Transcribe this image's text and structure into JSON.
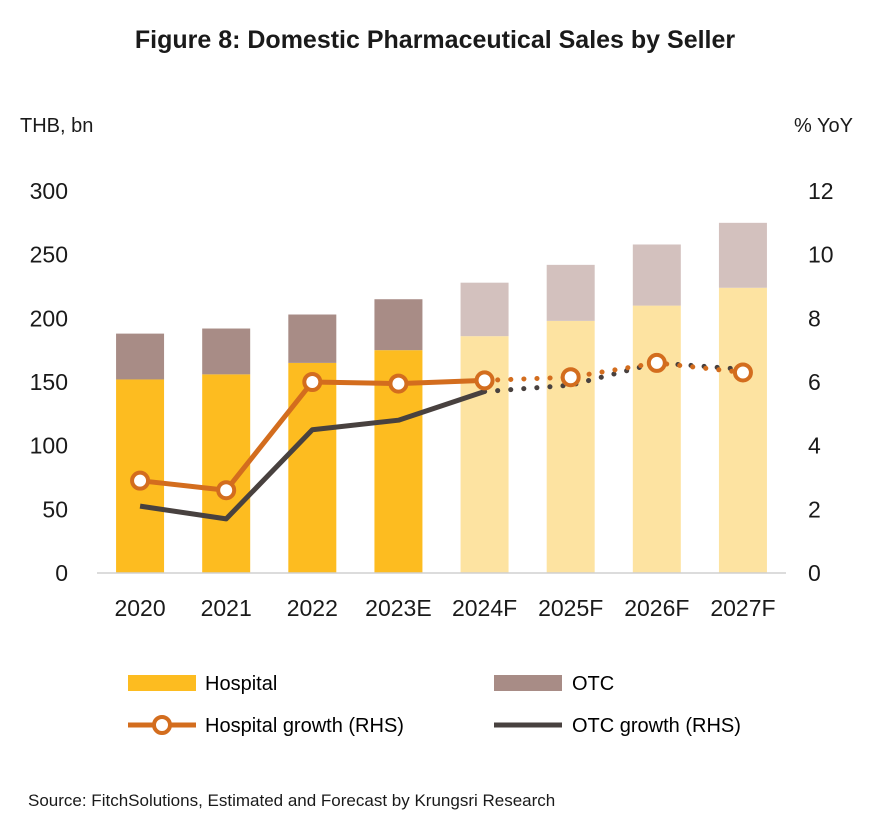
{
  "chart_data": {
    "type": "bar",
    "title": "Figure 8: Domestic Pharmaceutical Sales by Seller",
    "ylabel": "THB, bn",
    "y2label": "% YoY",
    "ylim": [
      0,
      300
    ],
    "y2lim": [
      0,
      12
    ],
    "yticks": [
      "0",
      "50",
      "100",
      "150",
      "200",
      "250",
      "300"
    ],
    "y2ticks": [
      "0",
      "2",
      "4",
      "6",
      "8",
      "10",
      "12"
    ],
    "categories": [
      "2020",
      "2021",
      "2022",
      "2023E",
      "2024F",
      "2025F",
      "2026F",
      "2027F"
    ],
    "forecast_start_index": 4,
    "stacked": true,
    "series": [
      {
        "name": "Hospital",
        "kind": "bar",
        "axis": "left",
        "color": "#FDBC20",
        "forecast_color": "#FDE3A1",
        "values": [
          152,
          156,
          165,
          175,
          186,
          198,
          210,
          224
        ]
      },
      {
        "name": "OTC",
        "kind": "bar",
        "axis": "left",
        "color": "#A88C86",
        "forecast_color": "#D3C1BE",
        "values": [
          36,
          36,
          38,
          40,
          42,
          44,
          48,
          51
        ]
      },
      {
        "name": "Hospital growth (RHS)",
        "kind": "line",
        "axis": "right",
        "color": "#D36D1E",
        "values": [
          2.9,
          2.6,
          6.0,
          5.95,
          6.05,
          6.15,
          6.6,
          6.3
        ]
      },
      {
        "name": "OTC growth (RHS)",
        "kind": "line",
        "axis": "right",
        "color": "#48413F",
        "values": [
          2.1,
          1.7,
          4.5,
          4.8,
          5.7,
          5.9,
          6.6,
          6.4
        ]
      }
    ],
    "legend": "bottom",
    "grid": false
  },
  "source": "Source: FitchSolutions, Estimated and Forecast by Krungsri Research"
}
